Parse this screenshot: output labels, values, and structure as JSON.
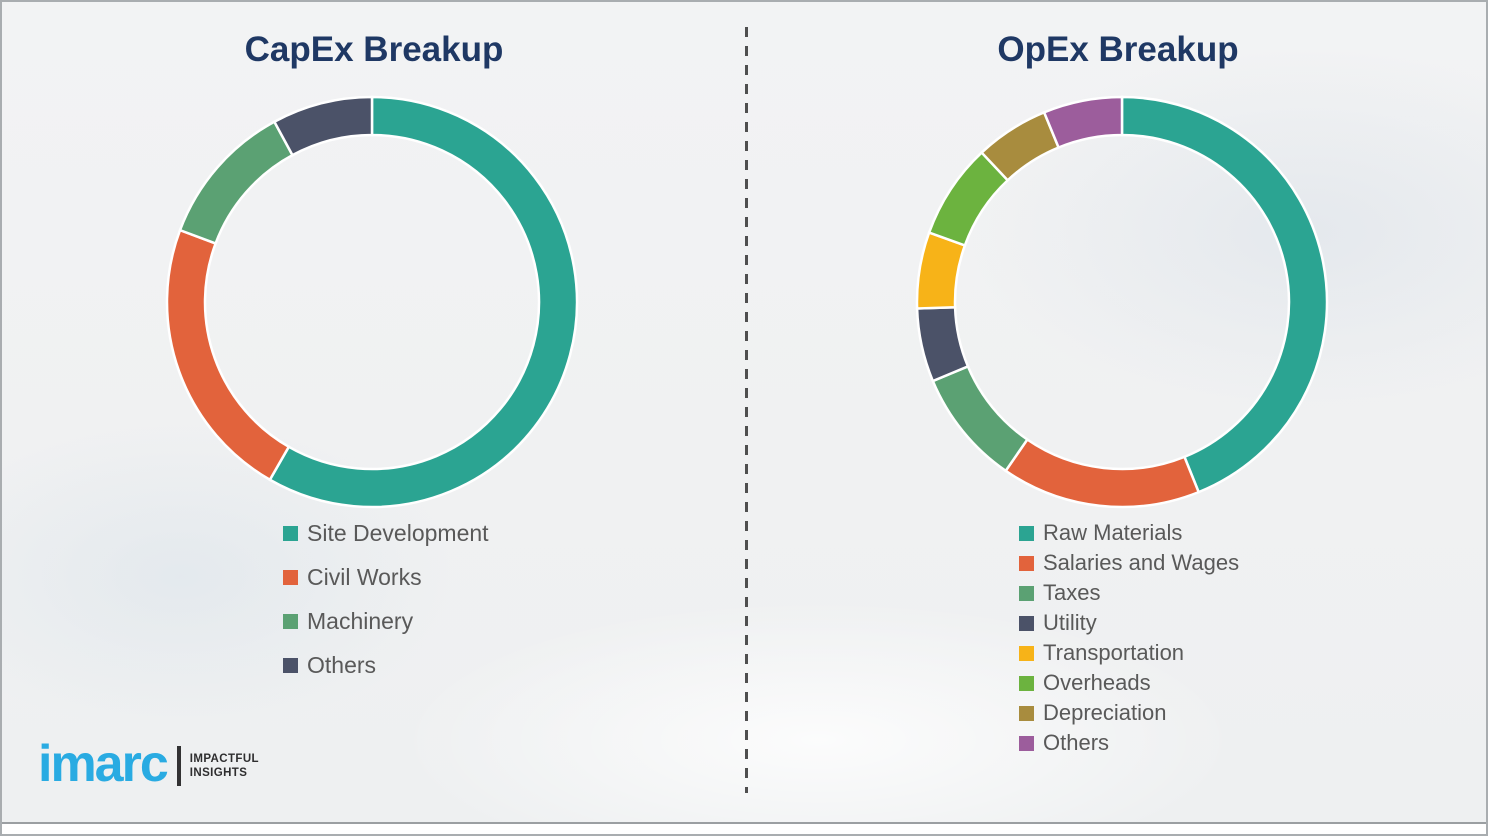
{
  "chart_data": [
    {
      "type": "pie",
      "variant": "donut",
      "title": "CapEx Breakup",
      "categories": [
        "Site Development",
        "Civil Works",
        "Machinery",
        "Others"
      ],
      "values": [
        58.3,
        22.4,
        11.4,
        7.9
      ],
      "unit": "percent",
      "colors": [
        "#2BA492",
        "#E2633C",
        "#5BA173",
        "#4B5268"
      ],
      "start_angle_deg": 0,
      "direction": "clockwise",
      "legend_position": "below-left",
      "outer_radius_px": 205,
      "inner_radius_px": 167
    },
    {
      "type": "pie",
      "variant": "donut",
      "title": "OpEx Breakup",
      "categories": [
        "Raw Materials",
        "Salaries and Wages",
        "Taxes",
        "Utility",
        "Transportation",
        "Overheads",
        "Depreciation",
        "Others"
      ],
      "values": [
        43.9,
        15.7,
        9.1,
        5.8,
        6.0,
        7.5,
        5.8,
        6.2
      ],
      "unit": "percent",
      "colors": [
        "#2BA492",
        "#E2633C",
        "#5BA173",
        "#4B5268",
        "#F7B318",
        "#6CB33F",
        "#A88C3E",
        "#9C5D9C"
      ],
      "start_angle_deg": 0,
      "direction": "clockwise",
      "legend_position": "below-left",
      "outer_radius_px": 205,
      "inner_radius_px": 167
    }
  ],
  "branding": {
    "logo_text": "imarc",
    "tagline_line1": "IMPACTFUL",
    "tagline_line2": "INSIGHTS",
    "logo_color": "#29ABE2"
  },
  "style": {
    "title_color": "#1F3864",
    "legend_text_color": "#595959",
    "divider_color": "#4F4F4F",
    "background_color": "#F1F2F3",
    "segment_separator_color": "#FFFFFF"
  }
}
